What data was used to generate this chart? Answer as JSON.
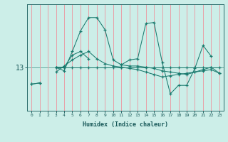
{
  "xlabel": "Humidex (Indice chaleur)",
  "bg_color": "#cceee8",
  "line_color": "#1a7a6e",
  "grid_color_x": "#e8a0a8",
  "grid_color_y": "#1a7a6e",
  "ytick_label": "13",
  "ytick_value": 13,
  "xlim": [
    -0.5,
    23.5
  ],
  "ylim": [
    11.2,
    15.6
  ],
  "x": [
    0,
    1,
    2,
    3,
    4,
    5,
    6,
    7,
    8,
    9,
    10,
    11,
    12,
    13,
    14,
    15,
    16,
    17,
    18,
    19,
    20,
    21,
    22,
    23
  ],
  "series1": [
    null,
    null,
    null,
    13.0,
    13.0,
    13.0,
    13.0,
    13.0,
    13.0,
    13.0,
    13.0,
    13.0,
    13.0,
    13.0,
    13.0,
    13.0,
    13.0,
    13.0,
    13.0,
    13.0,
    13.0,
    13.0,
    13.0,
    13.0
  ],
  "series2": [
    null,
    null,
    null,
    13.0,
    12.85,
    13.65,
    14.5,
    15.05,
    15.05,
    14.55,
    13.3,
    13.1,
    13.3,
    13.35,
    14.8,
    14.85,
    13.2,
    11.9,
    12.25,
    12.25,
    12.95,
    13.9,
    13.45,
    null
  ],
  "series3": [
    12.3,
    12.35,
    null,
    13.0,
    13.0,
    13.5,
    13.65,
    13.35,
    null,
    null,
    null,
    13.1,
    13.05,
    13.05,
    13.0,
    12.95,
    12.85,
    12.8,
    12.75,
    12.7,
    12.8,
    12.9,
    13.0,
    12.75
  ],
  "series4": [
    12.3,
    12.35,
    null,
    12.8,
    13.05,
    13.3,
    13.5,
    13.65,
    13.35,
    13.15,
    13.05,
    13.0,
    12.95,
    12.9,
    12.8,
    12.7,
    12.6,
    12.65,
    12.7,
    12.75,
    12.8,
    12.85,
    12.9,
    12.75
  ]
}
